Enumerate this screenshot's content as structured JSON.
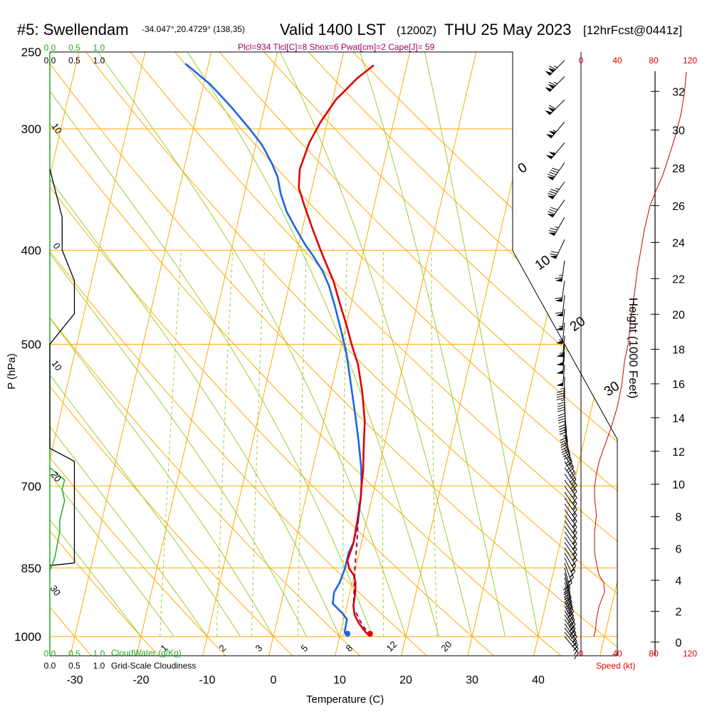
{
  "header": {
    "title": "#5: Swellendam",
    "location": "-34.047°,20.4729° (138,35)",
    "valid": "Valid 1400 LST",
    "zulu": "(1200Z)",
    "date": "THU 25 May 2023",
    "forecast": "[12hrFcst@0441z]"
  },
  "indices": "Plcl=934 Tlcl[C]=8 Shox=6 Pwat[cm]=2 Cape[J]= 59",
  "chart_data": {
    "type": "line",
    "title": "#5: Swellendam",
    "xlabel": "Temperature (C)",
    "ylabel": "P (hPa)",
    "y2label": "Height (1000 Feet)",
    "xlim": [
      -35,
      36
    ],
    "ylim": [
      1000,
      250
    ],
    "y_scale": "log",
    "x_ticks": [
      -30,
      -20,
      -10,
      0,
      10,
      20,
      30,
      40
    ],
    "pressure_ticks": [
      250,
      300,
      400,
      500,
      700,
      850,
      1000
    ],
    "height_ticks": [
      0,
      2,
      4,
      6,
      8,
      10,
      12,
      14,
      16,
      18,
      20,
      22,
      24,
      26,
      28,
      30,
      32
    ],
    "speed_ticks": [
      0,
      40,
      80,
      120
    ],
    "speed_label": "Speed (kt)",
    "cloud_ticks": [
      "0.0",
      "0.5",
      "1.0"
    ],
    "cloudwater_label": "CloudWater (g/Kg)",
    "cloudiness_label": "Grid-Scale Cloudiness",
    "isotherm_labels": [
      "0",
      "10",
      "20",
      "30"
    ],
    "dry_adiabat_labels": [
      "10",
      "0",
      "-10",
      "-20",
      "-30"
    ],
    "mixing_ratio_labels": [
      "1",
      "2",
      "3",
      "5",
      "8",
      "12",
      "20"
    ],
    "series": [
      {
        "name": "Temperature",
        "color": "#e00000",
        "points": [
          [
            14.6,
            1000
          ],
          [
            13.8,
            990
          ],
          [
            12.5,
            970
          ],
          [
            11.5,
            950
          ],
          [
            11.0,
            930
          ],
          [
            10.8,
            900
          ],
          [
            10.5,
            880
          ],
          [
            10.0,
            865
          ],
          [
            9.0,
            850
          ],
          [
            8.5,
            835
          ],
          [
            8.8,
            800
          ],
          [
            8.6,
            760
          ],
          [
            8.3,
            720
          ],
          [
            8.0,
            700
          ],
          [
            7.7,
            675
          ],
          [
            7.0,
            640
          ],
          [
            6.2,
            600
          ],
          [
            4.8,
            560
          ],
          [
            3.2,
            525
          ],
          [
            1.5,
            500
          ],
          [
            0.2,
            480
          ],
          [
            -2.0,
            450
          ],
          [
            -3.5,
            430
          ],
          [
            -5.5,
            410
          ],
          [
            -6.5,
            400
          ],
          [
            -8.5,
            380
          ],
          [
            -10.5,
            360
          ],
          [
            -12.0,
            345
          ],
          [
            -12.5,
            330
          ],
          [
            -12.0,
            310
          ],
          [
            -11.0,
            295
          ],
          [
            -9.5,
            280
          ],
          [
            -7.0,
            266
          ],
          [
            -5.0,
            258
          ]
        ]
      },
      {
        "name": "Dewpoint",
        "color": "#1a66e8",
        "points": [
          [
            11.2,
            1000
          ],
          [
            10.6,
            990
          ],
          [
            10.5,
            960
          ],
          [
            9.5,
            945
          ],
          [
            7.8,
            925
          ],
          [
            7.6,
            900
          ],
          [
            8.1,
            880
          ],
          [
            8.4,
            850
          ],
          [
            8.4,
            820
          ],
          [
            8.8,
            800
          ],
          [
            8.7,
            760
          ],
          [
            8.3,
            720
          ],
          [
            8.0,
            700
          ],
          [
            7.3,
            670
          ],
          [
            6.0,
            630
          ],
          [
            4.5,
            590
          ],
          [
            2.6,
            545
          ],
          [
            1.0,
            510
          ],
          [
            -0.5,
            485
          ],
          [
            -2.5,
            455
          ],
          [
            -4.0,
            435
          ],
          [
            -5.5,
            420
          ],
          [
            -7.5,
            405
          ],
          [
            -9.0,
            395
          ],
          [
            -11.0,
            380
          ],
          [
            -13.0,
            365
          ],
          [
            -14.5,
            350
          ],
          [
            -15.6,
            336
          ],
          [
            -17.0,
            325
          ],
          [
            -19.0,
            312
          ],
          [
            -21.5,
            300
          ],
          [
            -25.0,
            285
          ],
          [
            -29.0,
            270
          ],
          [
            -33.5,
            257
          ]
        ]
      },
      {
        "name": "Parcel",
        "color": "#8a0a5a",
        "points": [
          [
            14.6,
            1000
          ],
          [
            12.6,
            965
          ],
          [
            11.1,
            934
          ],
          [
            10.6,
            900
          ],
          [
            9.9,
            850
          ],
          [
            9.3,
            800
          ],
          [
            8.7,
            760
          ],
          [
            8.3,
            730
          ]
        ]
      },
      {
        "name": "Wind Speed",
        "color": "#cc0000",
        "points": [
          [
            14,
            1000
          ],
          [
            16,
            985
          ],
          [
            17,
            960
          ],
          [
            20,
            930
          ],
          [
            26,
            900
          ],
          [
            25,
            880
          ],
          [
            20,
            865
          ],
          [
            18,
            850
          ],
          [
            15,
            820
          ],
          [
            15,
            780
          ],
          [
            17,
            750
          ],
          [
            15,
            720
          ],
          [
            15,
            700
          ],
          [
            17,
            680
          ],
          [
            20,
            660
          ],
          [
            25,
            640
          ],
          [
            33,
            610
          ],
          [
            40,
            580
          ],
          [
            45,
            550
          ],
          [
            48,
            520
          ],
          [
            52,
            500
          ],
          [
            55,
            470
          ],
          [
            58,
            450
          ],
          [
            62,
            420
          ],
          [
            66,
            400
          ],
          [
            70,
            380
          ],
          [
            76,
            360
          ],
          [
            84,
            345
          ],
          [
            90,
            335
          ],
          [
            97,
            320
          ],
          [
            104,
            305
          ],
          [
            110,
            290
          ],
          [
            114,
            275
          ],
          [
            116,
            262
          ]
        ]
      },
      {
        "name": "Grid-Scale Cloudiness",
        "color": "#000000",
        "points": [
          [
            0,
            330
          ],
          [
            0.25,
            370
          ],
          [
            0.25,
            400
          ],
          [
            0.5,
            430
          ],
          [
            0.5,
            465
          ],
          [
            0,
            500
          ],
          [
            0,
            640
          ],
          [
            0.5,
            660
          ],
          [
            0.5,
            840
          ],
          [
            0,
            845
          ]
        ]
      },
      {
        "name": "CloudWater",
        "color": "#22aa22",
        "points": [
          [
            0,
            670
          ],
          [
            0.3,
            690
          ],
          [
            0.25,
            705
          ],
          [
            0.3,
            725
          ],
          [
            0.2,
            760
          ],
          [
            0.2,
            780
          ],
          [
            0.1,
            830
          ],
          [
            0,
            855
          ]
        ]
      }
    ],
    "wind_barbs": [
      {
        "p": 1000,
        "speed": 14,
        "dir": 140
      },
      {
        "p": 990,
        "speed": 14,
        "dir": 140
      },
      {
        "p": 980,
        "speed": 15,
        "dir": 142
      },
      {
        "p": 970,
        "speed": 15,
        "dir": 145
      },
      {
        "p": 960,
        "speed": 17,
        "dir": 145
      },
      {
        "p": 950,
        "speed": 18,
        "dir": 148
      },
      {
        "p": 940,
        "speed": 19,
        "dir": 150
      },
      {
        "p": 930,
        "speed": 20,
        "dir": 150
      },
      {
        "p": 920,
        "speed": 22,
        "dir": 152
      },
      {
        "p": 910,
        "speed": 24,
        "dir": 155
      },
      {
        "p": 900,
        "speed": 26,
        "dir": 155
      },
      {
        "p": 890,
        "speed": 25,
        "dir": 158
      },
      {
        "p": 880,
        "speed": 24,
        "dir": 160
      },
      {
        "p": 870,
        "speed": 21,
        "dir": 162
      },
      {
        "p": 860,
        "speed": 19,
        "dir": 165
      },
      {
        "p": 850,
        "speed": 18,
        "dir": 165
      },
      {
        "p": 840,
        "speed": 16,
        "dir": 160
      },
      {
        "p": 830,
        "speed": 15,
        "dir": 155
      },
      {
        "p": 820,
        "speed": 15,
        "dir": 150
      },
      {
        "p": 810,
        "speed": 15,
        "dir": 148
      },
      {
        "p": 800,
        "speed": 15,
        "dir": 145
      },
      {
        "p": 790,
        "speed": 15,
        "dir": 145
      },
      {
        "p": 780,
        "speed": 16,
        "dir": 145
      },
      {
        "p": 770,
        "speed": 17,
        "dir": 145
      },
      {
        "p": 760,
        "speed": 17,
        "dir": 145
      },
      {
        "p": 750,
        "speed": 16,
        "dir": 145
      },
      {
        "p": 740,
        "speed": 16,
        "dir": 145
      },
      {
        "p": 730,
        "speed": 15,
        "dir": 145
      },
      {
        "p": 720,
        "speed": 15,
        "dir": 145
      },
      {
        "p": 710,
        "speed": 15,
        "dir": 145
      },
      {
        "p": 700,
        "speed": 15,
        "dir": 145
      },
      {
        "p": 690,
        "speed": 16,
        "dir": 145
      },
      {
        "p": 680,
        "speed": 17,
        "dir": 145
      },
      {
        "p": 670,
        "speed": 18,
        "dir": 145
      },
      {
        "p": 660,
        "speed": 20,
        "dir": 148
      },
      {
        "p": 650,
        "speed": 22,
        "dir": 150
      },
      {
        "p": 640,
        "speed": 25,
        "dir": 155
      },
      {
        "p": 630,
        "speed": 27,
        "dir": 160
      },
      {
        "p": 620,
        "speed": 30,
        "dir": 165
      },
      {
        "p": 610,
        "speed": 32,
        "dir": 170
      },
      {
        "p": 600,
        "speed": 34,
        "dir": 172
      },
      {
        "p": 585,
        "speed": 38,
        "dir": 175
      },
      {
        "p": 570,
        "speed": 42,
        "dir": 178
      },
      {
        "p": 555,
        "speed": 45,
        "dir": 180
      },
      {
        "p": 540,
        "speed": 46,
        "dir": 182
      },
      {
        "p": 525,
        "speed": 48,
        "dir": 185
      },
      {
        "p": 510,
        "speed": 50,
        "dir": 185
      },
      {
        "p": 500,
        "speed": 52,
        "dir": 185
      },
      {
        "p": 490,
        "speed": 53,
        "dir": 185
      },
      {
        "p": 475,
        "speed": 55,
        "dir": 186
      },
      {
        "p": 460,
        "speed": 56,
        "dir": 186
      },
      {
        "p": 445,
        "speed": 58,
        "dir": 186
      },
      {
        "p": 430,
        "speed": 60,
        "dir": 188
      },
      {
        "p": 410,
        "speed": 64,
        "dir": 188
      },
      {
        "p": 390,
        "speed": 68,
        "dir": 205
      },
      {
        "p": 370,
        "speed": 74,
        "dir": 210
      },
      {
        "p": 355,
        "speed": 80,
        "dir": 215
      },
      {
        "p": 340,
        "speed": 86,
        "dir": 215
      },
      {
        "p": 325,
        "speed": 92,
        "dir": 215
      },
      {
        "p": 310,
        "speed": 100,
        "dir": 220
      },
      {
        "p": 295,
        "speed": 106,
        "dir": 220
      },
      {
        "p": 280,
        "speed": 111,
        "dir": 225
      },
      {
        "p": 265,
        "speed": 114,
        "dir": 225
      },
      {
        "p": 255,
        "speed": 116,
        "dir": 225
      }
    ],
    "grid": true,
    "legend": "none"
  }
}
